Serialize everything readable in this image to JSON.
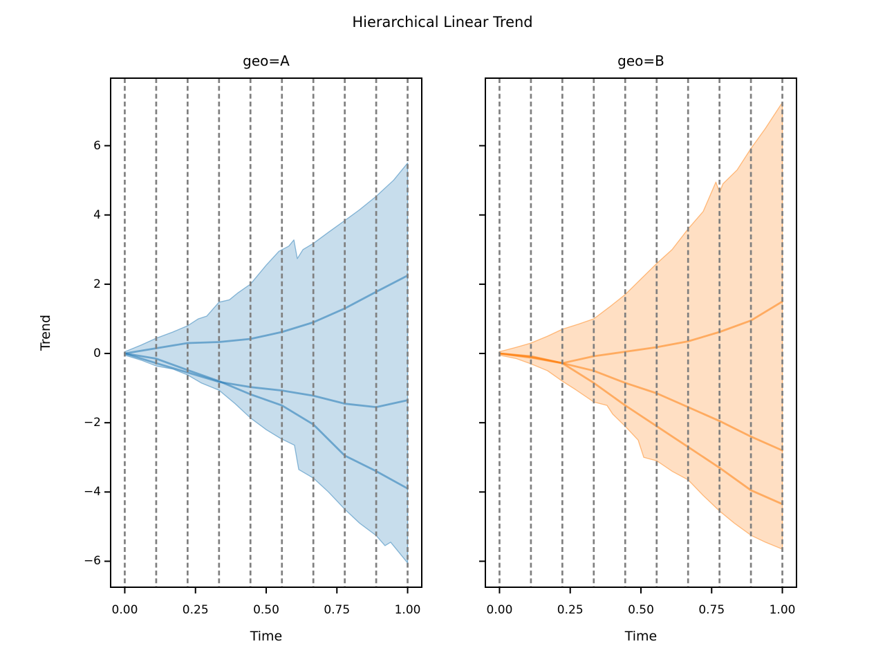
{
  "figure": {
    "suptitle": "Hierarchical Linear Trend",
    "background": "#ffffff"
  },
  "style": {
    "text_color": "#000000",
    "spine_color": "#000000",
    "changepoint_color": "#7f7f7f",
    "changepoint_dash": [
      7,
      4.3
    ],
    "changepoint_width": 2.7,
    "sample_line_width": 2.8,
    "band_alpha": 0.25,
    "band_edge_alpha": 0.5,
    "sample_alpha": 0.55,
    "tick_length": 9,
    "tick_width": 2,
    "spine_width": 2
  },
  "chart_data": [
    {
      "type": "area",
      "title": "geo=A",
      "xlabel": "Time",
      "ylabel": "Trend",
      "color": "#1f77b4",
      "xlim": [
        -0.05,
        1.05
      ],
      "ylim": [
        -6.75,
        7.95
      ],
      "grid": "vertical-dashed-changepoints",
      "x_ticks": {
        "values": [
          0,
          0.25,
          0.5,
          0.75,
          1.0
        ],
        "labels": [
          "0.00",
          "0.25",
          "0.50",
          "0.75",
          "1.00"
        ]
      },
      "y_ticks": {
        "values": [
          6,
          4,
          2,
          0,
          -2,
          -4,
          -6
        ],
        "labels": [
          "6",
          "4",
          "2",
          "0",
          "−2",
          "−4",
          "−6"
        ],
        "show_labels": true
      },
      "changepoints": [
        0,
        0.1111,
        0.2222,
        0.3333,
        0.4444,
        0.5556,
        0.6667,
        0.7778,
        0.8889,
        1.0
      ],
      "hdi_band": {
        "x_upper": [
          0,
          0.06,
          0.111,
          0.17,
          0.222,
          0.26,
          0.29,
          0.333,
          0.37,
          0.4,
          0.444,
          0.5,
          0.545,
          0.58,
          0.598,
          0.61,
          0.63,
          0.667,
          0.72,
          0.778,
          0.83,
          0.889,
          0.93,
          0.95,
          1.0
        ],
        "upper": [
          0.05,
          0.25,
          0.44,
          0.62,
          0.8,
          1.0,
          1.08,
          1.48,
          1.55,
          1.75,
          2.0,
          2.55,
          2.95,
          3.1,
          3.28,
          2.74,
          3.0,
          3.18,
          3.5,
          3.84,
          4.15,
          4.54,
          4.85,
          5.0,
          5.5
        ],
        "x_lower": [
          0,
          0.06,
          0.111,
          0.17,
          0.222,
          0.27,
          0.333,
          0.39,
          0.444,
          0.5,
          0.55,
          0.6,
          0.615,
          0.667,
          0.72,
          0.778,
          0.83,
          0.889,
          0.92,
          0.94,
          1.0
        ],
        "lower": [
          -0.05,
          -0.2,
          -0.36,
          -0.45,
          -0.62,
          -0.85,
          -1.06,
          -1.45,
          -1.86,
          -2.2,
          -2.45,
          -2.65,
          -3.35,
          -3.6,
          -4.0,
          -4.5,
          -4.9,
          -5.26,
          -5.55,
          -5.45,
          -6.05
        ]
      },
      "sample_x": [
        0,
        0.1111,
        0.2222,
        0.3333,
        0.4444,
        0.5556,
        0.6667,
        0.7778,
        0.8889,
        1.0
      ],
      "samples": [
        {
          "name": "sample-1",
          "y": [
            0,
            0.15,
            0.3,
            0.33,
            0.42,
            0.62,
            0.9,
            1.3,
            1.78,
            2.25
          ]
        },
        {
          "name": "sample-2",
          "y": [
            0,
            -0.28,
            -0.55,
            -0.82,
            -0.97,
            -1.07,
            -1.22,
            -1.45,
            -1.55,
            -1.35
          ]
        },
        {
          "name": "sample-3",
          "y": [
            0,
            -0.15,
            -0.48,
            -0.8,
            -1.18,
            -1.5,
            -2.05,
            -2.95,
            -3.4,
            -3.9
          ]
        }
      ]
    },
    {
      "type": "area",
      "title": "geo=B",
      "xlabel": "Time",
      "ylabel": "",
      "color": "#ff7f0e",
      "xlim": [
        -0.05,
        1.05
      ],
      "ylim": [
        -6.75,
        7.95
      ],
      "grid": "vertical-dashed-changepoints",
      "x_ticks": {
        "values": [
          0,
          0.25,
          0.5,
          0.75,
          1.0
        ],
        "labels": [
          "0.00",
          "0.25",
          "0.50",
          "0.75",
          "1.00"
        ]
      },
      "y_ticks": {
        "values": [
          6,
          4,
          2,
          0,
          -2,
          -4,
          -6
        ],
        "labels": [
          "6",
          "4",
          "2",
          "0",
          "−2",
          "−4",
          "−6"
        ],
        "show_labels": false
      },
      "changepoints": [
        0,
        0.1111,
        0.2222,
        0.3333,
        0.4444,
        0.5556,
        0.6667,
        0.7778,
        0.8889,
        1.0
      ],
      "hdi_band": {
        "x_upper": [
          0,
          0.06,
          0.111,
          0.17,
          0.222,
          0.28,
          0.333,
          0.39,
          0.444,
          0.5,
          0.556,
          0.61,
          0.667,
          0.72,
          0.765,
          0.778,
          0.79,
          0.84,
          0.889,
          0.94,
          1.0
        ],
        "upper": [
          0.05,
          0.18,
          0.3,
          0.5,
          0.7,
          0.85,
          1.0,
          1.35,
          1.7,
          2.15,
          2.6,
          3.0,
          3.6,
          4.1,
          4.95,
          4.65,
          4.9,
          5.3,
          5.92,
          6.5,
          7.25
        ],
        "x_lower": [
          0,
          0.06,
          0.111,
          0.17,
          0.222,
          0.27,
          0.333,
          0.38,
          0.4,
          0.444,
          0.49,
          0.51,
          0.556,
          0.61,
          0.667,
          0.72,
          0.778,
          0.83,
          0.889,
          0.94,
          1.0
        ],
        "lower": [
          -0.05,
          -0.15,
          -0.3,
          -0.5,
          -0.8,
          -1.05,
          -1.4,
          -1.5,
          -1.75,
          -2.1,
          -2.5,
          -3.0,
          -3.1,
          -3.4,
          -3.65,
          -4.1,
          -4.55,
          -4.9,
          -5.25,
          -5.45,
          -5.65
        ]
      },
      "sample_x": [
        0,
        0.1111,
        0.2222,
        0.3333,
        0.4444,
        0.5556,
        0.6667,
        0.7778,
        0.8889,
        1.0
      ],
      "samples": [
        {
          "name": "sample-1",
          "y": [
            0,
            -0.08,
            -0.28,
            -0.08,
            0.05,
            0.18,
            0.35,
            0.62,
            0.95,
            1.5
          ]
        },
        {
          "name": "sample-2",
          "y": [
            0,
            -0.1,
            -0.28,
            -0.5,
            -0.85,
            -1.15,
            -1.55,
            -1.95,
            -2.4,
            -2.8
          ]
        },
        {
          "name": "sample-3",
          "y": [
            0,
            -0.12,
            -0.28,
            -0.85,
            -1.5,
            -2.1,
            -2.7,
            -3.3,
            -3.95,
            -4.35
          ]
        }
      ]
    }
  ]
}
